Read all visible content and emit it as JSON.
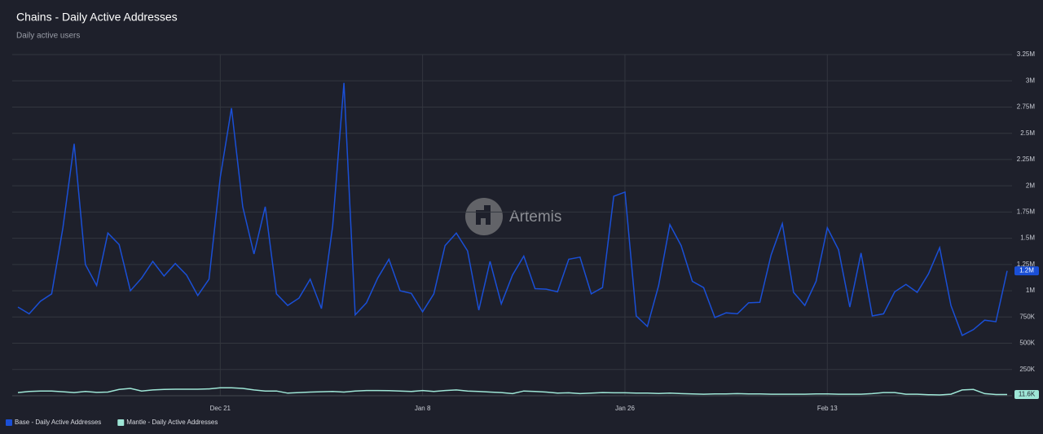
{
  "chart_data": {
    "type": "line",
    "title": "Chains - Daily Active Addresses",
    "subtitle": "Daily active users",
    "watermark": "Artemis",
    "categories": [
      null,
      null,
      null,
      null,
      null,
      null,
      null,
      null,
      null,
      null,
      null,
      null,
      null,
      null,
      null,
      null,
      null,
      null,
      "Dec 21",
      null,
      null,
      null,
      null,
      null,
      null,
      null,
      null,
      null,
      null,
      null,
      null,
      null,
      null,
      null,
      null,
      null,
      "Jan 8",
      null,
      null,
      null,
      null,
      null,
      null,
      null,
      null,
      null,
      null,
      null,
      null,
      null,
      null,
      null,
      null,
      null,
      "Jan 26",
      null,
      null,
      null,
      null,
      null,
      null,
      null,
      null,
      null,
      null,
      null,
      null,
      null,
      null,
      null,
      null,
      null,
      "Feb 13",
      null,
      null,
      null,
      null,
      null,
      null,
      null,
      null,
      null,
      null,
      null,
      null,
      null,
      null,
      null,
      null
    ],
    "series": [
      {
        "name": "Base - Daily Active Addresses",
        "color": "#1a4fd6",
        "values": [
          845000,
          780000,
          900000,
          970000,
          1600000,
          2400000,
          1250000,
          1050000,
          1550000,
          1440000,
          1000000,
          1120000,
          1280000,
          1140000,
          1260000,
          1150000,
          955000,
          1110000,
          2080000,
          2740000,
          1800000,
          1350000,
          1800000,
          970000,
          860000,
          930000,
          1110000,
          830000,
          1620000,
          2980000,
          770000,
          885000,
          1120000,
          1300000,
          1000000,
          975000,
          800000,
          970000,
          1430000,
          1550000,
          1380000,
          815000,
          1280000,
          875000,
          1150000,
          1330000,
          1020000,
          1015000,
          990000,
          1300000,
          1320000,
          970000,
          1030000,
          1900000,
          1940000,
          760000,
          660000,
          1050000,
          1630000,
          1430000,
          1090000,
          1030000,
          745000,
          790000,
          780000,
          885000,
          890000,
          1340000,
          1640000,
          985000,
          860000,
          1090000,
          1600000,
          1390000,
          845000,
          1360000,
          760000,
          780000,
          990000,
          1060000,
          985000,
          1160000,
          1410000,
          860000,
          575000,
          630000,
          720000,
          705000,
          1190000
        ],
        "value_labels": [
          null,
          null,
          null,
          null,
          null,
          null,
          null,
          null,
          null,
          null,
          null,
          null,
          null,
          null,
          null,
          null,
          null,
          null,
          null,
          null,
          null,
          null,
          null,
          null,
          null,
          null,
          null,
          null,
          null,
          null,
          null,
          null,
          null,
          null,
          null,
          null,
          null,
          null,
          null,
          null,
          null,
          null,
          null,
          null,
          null,
          null,
          null,
          null,
          null,
          null,
          null,
          null,
          null,
          null,
          null,
          null,
          null,
          null,
          null,
          null,
          null,
          null,
          null,
          null,
          null,
          null,
          null,
          null,
          null,
          null,
          null,
          null,
          null,
          null,
          null,
          null,
          null,
          null,
          null,
          null,
          null,
          null,
          null,
          null,
          null,
          null,
          null,
          null,
          "1.2M"
        ]
      },
      {
        "name": "Mantle - Daily Active Addresses",
        "color": "#9ee6d6",
        "values": [
          30000,
          40000,
          45000,
          45000,
          38000,
          30000,
          40000,
          32000,
          35000,
          60000,
          70000,
          45000,
          55000,
          60000,
          62000,
          62000,
          62000,
          65000,
          75000,
          75000,
          70000,
          55000,
          45000,
          45000,
          25000,
          30000,
          35000,
          38000,
          40000,
          35000,
          45000,
          50000,
          50000,
          48000,
          45000,
          40000,
          50000,
          40000,
          50000,
          55000,
          45000,
          40000,
          35000,
          30000,
          20000,
          45000,
          40000,
          35000,
          25000,
          28000,
          20000,
          25000,
          30000,
          28000,
          28000,
          25000,
          25000,
          22000,
          25000,
          20000,
          18000,
          15000,
          18000,
          18000,
          20000,
          18000,
          18000,
          15000,
          15000,
          15000,
          15000,
          18000,
          18000,
          15000,
          15000,
          15000,
          20000,
          30000,
          30000,
          15000,
          15000,
          10000,
          8000,
          15000,
          55000,
          60000,
          20000,
          12000,
          11600
        ],
        "value_labels": [
          null,
          null,
          null,
          null,
          null,
          null,
          null,
          null,
          null,
          null,
          null,
          null,
          null,
          null,
          null,
          null,
          null,
          null,
          null,
          null,
          null,
          null,
          null,
          null,
          null,
          null,
          null,
          null,
          null,
          null,
          null,
          null,
          null,
          null,
          null,
          null,
          null,
          null,
          null,
          null,
          null,
          null,
          null,
          null,
          null,
          null,
          null,
          null,
          null,
          null,
          null,
          null,
          null,
          null,
          null,
          null,
          null,
          null,
          null,
          null,
          null,
          null,
          null,
          null,
          null,
          null,
          null,
          null,
          null,
          null,
          null,
          null,
          null,
          null,
          null,
          null,
          null,
          null,
          null,
          null,
          null,
          null,
          null,
          null,
          null,
          null,
          null,
          null,
          "11.6K"
        ]
      }
    ],
    "ylim": [
      0,
      3250000
    ],
    "yticks": [
      {
        "value": 250000,
        "label": "250K"
      },
      {
        "value": 500000,
        "label": "500K"
      },
      {
        "value": 750000,
        "label": "750K"
      },
      {
        "value": 1000000,
        "label": "1M"
      },
      {
        "value": 1250000,
        "label": "1.25M"
      },
      {
        "value": 1500000,
        "label": "1.5M"
      },
      {
        "value": 1750000,
        "label": "1.75M"
      },
      {
        "value": 2000000,
        "label": "2M"
      },
      {
        "value": 2250000,
        "label": "2.25M"
      },
      {
        "value": 2500000,
        "label": "2.5M"
      },
      {
        "value": 2750000,
        "label": "2.75M"
      },
      {
        "value": 3000000,
        "label": "3M"
      },
      {
        "value": 3250000,
        "label": "3.25M"
      }
    ],
    "grid": true
  }
}
